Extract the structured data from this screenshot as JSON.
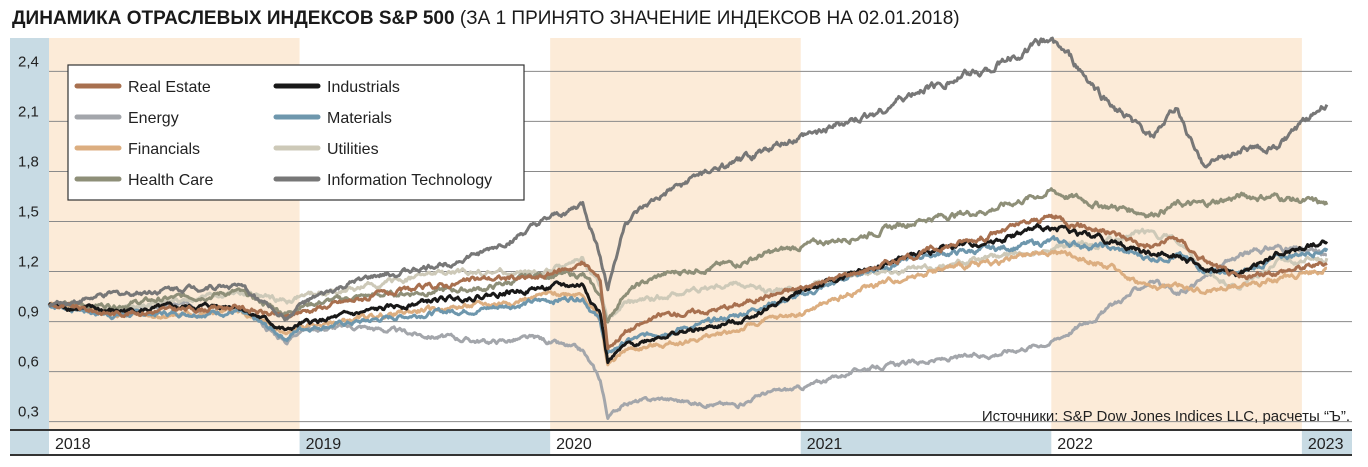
{
  "title": "ДИНАМИКА ОТРАСЛЕВЫХ ИНДЕКСОВ S&P 500",
  "subtitle": "(ЗА 1 ПРИНЯТО ЗНАЧЕНИЕ ИНДЕКСОВ НА 02.01.2018)",
  "source": "Источники: S&P Dow Jones Indices LLC, расчеты “Ъ”.",
  "colors": {
    "shade": "#fcebd8",
    "left_band": "#c8dbe4",
    "axis_band": "#c8dbe4",
    "grid": "#8a8a8a"
  },
  "chart_data": {
    "type": "line",
    "title": "ДИНАМИКА ОТРАСЛЕВЫХ ИНДЕКСОВ S&P 500",
    "xlabel": "",
    "ylabel": "",
    "xlim": [
      2018.0,
      2023.2
    ],
    "ylim": [
      0.25,
      2.6
    ],
    "yticks": [
      "0,3",
      "0,6",
      "0,9",
      "1,2",
      "1,5",
      "1,8",
      "2,1",
      "2,4"
    ],
    "ytick_values": [
      0.3,
      0.6,
      0.9,
      1.2,
      1.5,
      1.8,
      2.1,
      2.4
    ],
    "x_labels": [
      "2018",
      "2019",
      "2020",
      "2021",
      "2022",
      "2023"
    ],
    "x_label_values": [
      2018,
      2019,
      2020,
      2021,
      2022,
      2023
    ],
    "shaded_years": [
      2018,
      2020,
      2022
    ],
    "grid": true,
    "legend_position": "top-left",
    "x": [
      2018.0,
      2018.25,
      2018.5,
      2018.75,
      2018.95,
      2019.0,
      2019.25,
      2019.5,
      2019.75,
      2019.95,
      2020.13,
      2020.2,
      2020.23,
      2020.3,
      2020.45,
      2020.6,
      2020.75,
      2020.85,
      2021.0,
      2021.25,
      2021.5,
      2021.75,
      2022.0,
      2022.2,
      2022.4,
      2022.5,
      2022.6,
      2022.75,
      2022.9,
      2023.1
    ],
    "series": [
      {
        "name": "Real Estate",
        "color": "#a8704f",
        "values": [
          1.0,
          0.95,
          0.97,
          0.99,
          0.92,
          0.96,
          1.04,
          1.1,
          1.16,
          1.16,
          1.25,
          1.15,
          0.75,
          0.84,
          0.94,
          0.96,
          1.0,
          1.05,
          1.1,
          1.21,
          1.32,
          1.42,
          1.53,
          1.45,
          1.35,
          1.4,
          1.28,
          1.15,
          1.2,
          1.25
        ]
      },
      {
        "name": "Energy",
        "color": "#a3a6ab",
        "values": [
          1.0,
          0.96,
          1.0,
          0.98,
          0.78,
          0.86,
          0.87,
          0.82,
          0.78,
          0.8,
          0.72,
          0.55,
          0.33,
          0.41,
          0.44,
          0.41,
          0.4,
          0.47,
          0.5,
          0.62,
          0.66,
          0.7,
          0.78,
          0.95,
          1.15,
          1.05,
          1.15,
          1.3,
          1.35,
          1.3
        ]
      },
      {
        "name": "Financials",
        "color": "#dcae80",
        "values": [
          1.0,
          0.95,
          0.94,
          0.96,
          0.82,
          0.86,
          0.92,
          0.97,
          1.0,
          1.05,
          1.08,
          0.9,
          0.64,
          0.73,
          0.76,
          0.8,
          0.85,
          0.9,
          0.95,
          1.1,
          1.2,
          1.25,
          1.32,
          1.25,
          1.1,
          1.12,
          1.08,
          1.12,
          1.15,
          1.22
        ]
      },
      {
        "name": "Health Care",
        "color": "#8e8f78",
        "values": [
          1.0,
          1.0,
          1.04,
          1.08,
          0.95,
          1.0,
          1.05,
          1.08,
          1.1,
          1.18,
          1.18,
          1.05,
          0.9,
          1.08,
          1.18,
          1.22,
          1.25,
          1.3,
          1.35,
          1.42,
          1.52,
          1.57,
          1.68,
          1.6,
          1.55,
          1.6,
          1.6,
          1.65,
          1.65,
          1.6
        ]
      },
      {
        "name": "Industrials",
        "color": "#181818",
        "values": [
          1.0,
          0.96,
          0.98,
          1.0,
          0.84,
          0.88,
          0.95,
          1.02,
          1.06,
          1.1,
          1.12,
          0.95,
          0.66,
          0.75,
          0.82,
          0.85,
          0.9,
          0.97,
          1.08,
          1.2,
          1.32,
          1.38,
          1.47,
          1.4,
          1.3,
          1.32,
          1.22,
          1.18,
          1.3,
          1.38
        ]
      },
      {
        "name": "Materials",
        "color": "#6e97ad",
        "values": [
          1.0,
          0.94,
          0.95,
          0.96,
          0.8,
          0.86,
          0.9,
          0.95,
          0.98,
          1.02,
          1.05,
          0.9,
          0.7,
          0.78,
          0.84,
          0.88,
          0.94,
          1.0,
          1.05,
          1.2,
          1.3,
          1.33,
          1.38,
          1.35,
          1.28,
          1.3,
          1.22,
          1.18,
          1.28,
          1.34
        ]
      },
      {
        "name": "Utilities",
        "color": "#cdc9b8",
        "values": [
          1.0,
          0.98,
          1.02,
          1.08,
          1.02,
          1.05,
          1.1,
          1.18,
          1.2,
          1.18,
          1.28,
          1.1,
          0.9,
          1.0,
          1.05,
          1.1,
          1.13,
          1.08,
          1.1,
          1.2,
          1.22,
          1.28,
          1.35,
          1.37,
          1.45,
          1.38,
          1.2,
          1.1,
          1.25,
          1.28
        ]
      },
      {
        "name": "Information Technology",
        "color": "#777777",
        "values": [
          1.0,
          1.06,
          1.1,
          1.12,
          0.92,
          1.0,
          1.15,
          1.22,
          1.32,
          1.47,
          1.6,
          1.3,
          1.1,
          1.5,
          1.65,
          1.78,
          1.85,
          1.92,
          2.0,
          2.12,
          2.3,
          2.42,
          2.6,
          2.25,
          2.0,
          2.18,
          1.85,
          1.93,
          1.95,
          2.2
        ]
      }
    ]
  }
}
